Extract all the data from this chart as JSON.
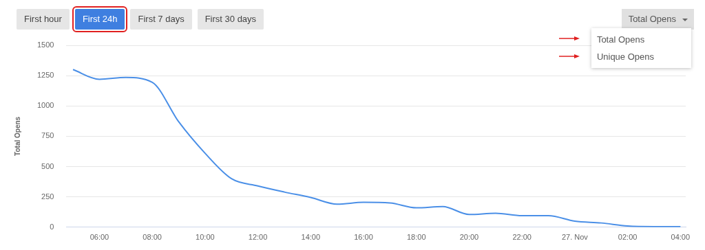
{
  "chart_data": {
    "type": "line",
    "ylabel": "Total Opens",
    "color": "#4a8fe7",
    "annotations": [
      "First hour",
      "First 24h",
      "First 7 days",
      "First 30 days",
      "Total Opens",
      "Total Opens",
      "Unique Opens"
    ],
    "x": [
      "--11-26T05:00",
      "--11-26T06:00",
      "--11-26T07:00",
      "--11-26T08:00",
      "--11-26T09:00",
      "--11-26T10:00",
      "--11-26T11:00",
      "--11-26T12:00",
      "--11-26T13:00",
      "--11-26T14:00",
      "--11-26T15:00",
      "--11-26T16:00",
      "--11-26T17:00",
      "--11-26T18:00",
      "--11-26T19:00",
      "--11-26T20:00",
      "--11-26T21:00",
      "--11-26T22:00",
      "--11-26T23:00",
      "--11-27T00:00",
      "--11-27T01:00",
      "--11-27T02:00",
      "--11-27T03:00",
      "--11-27T04:00"
    ],
    "values": [
      1300,
      1220,
      1235,
      1195,
      870,
      610,
      400,
      340,
      290,
      245,
      190,
      205,
      200,
      160,
      170,
      105,
      115,
      95,
      95,
      50,
      35,
      10,
      5,
      5
    ],
    "xlim": [
      "--11-26T04:45",
      "--11-27T04:12"
    ],
    "xticks": [
      {
        "value": "--11-26T06:00",
        "label": "06:00"
      },
      {
        "value": "--11-26T08:00",
        "label": "08:00"
      },
      {
        "value": "--11-26T10:00",
        "label": "10:00"
      },
      {
        "value": "--11-26T12:00",
        "label": "12:00"
      },
      {
        "value": "--11-26T14:00",
        "label": "14:00"
      },
      {
        "value": "--11-26T16:00",
        "label": "16:00"
      },
      {
        "value": "--11-26T18:00",
        "label": "18:00"
      },
      {
        "value": "--11-26T20:00",
        "label": "20:00"
      },
      {
        "value": "--11-26T22:00",
        "label": "22:00"
      },
      {
        "value": "--11-27T00:00",
        "label": "27. Nov"
      },
      {
        "value": "--11-27T02:00",
        "label": "02:00"
      },
      {
        "value": "--11-27T04:00",
        "label": "04:00"
      }
    ],
    "ylim": [
      0,
      1500
    ],
    "yticks": [
      0,
      250,
      500,
      750,
      1000,
      1250,
      1500
    ],
    "grid": "y",
    "legend": false,
    "marker": "none",
    "line_style": "solid"
  }
}
